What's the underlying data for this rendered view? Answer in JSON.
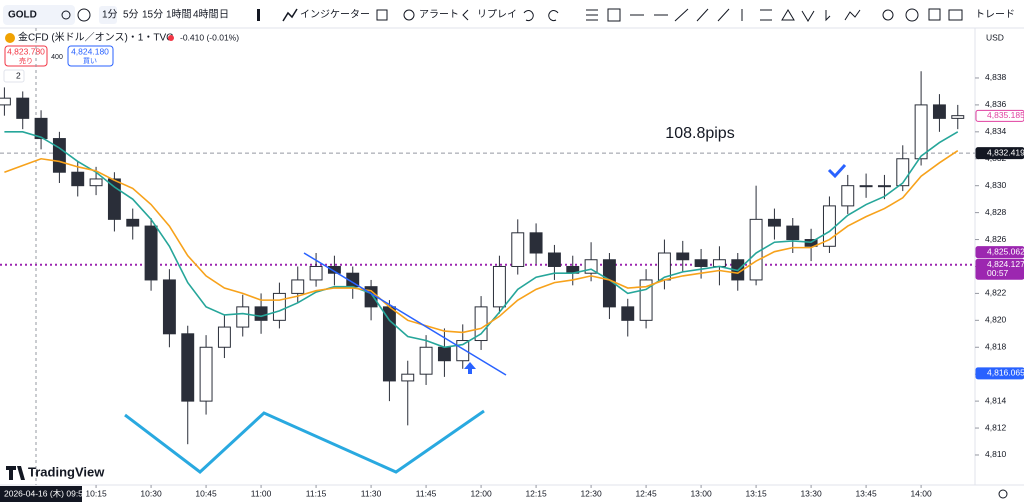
{
  "toolbar": {
    "symbol": "GOLD",
    "intervals": [
      "1分",
      "5分",
      "15分",
      "1時間",
      "4時間",
      "日"
    ],
    "indicators": "インジケーター",
    "alert": "アラート",
    "replay": "リプレイ",
    "trade": "トレード"
  },
  "header": {
    "instrument": "金CFD (米ドル／オンス)・1・TVC",
    "change": "-0.410 (-0.01%)",
    "sell_price": "4,823.780",
    "sell_label": "売り",
    "spread": "400",
    "buy_price": "4,824.180",
    "buy_label": "買い",
    "panes": "2"
  },
  "chart_data": {
    "type": "candlestick",
    "currency": "USD",
    "annotation": "108.8pips",
    "date_label": "2026-04-16 (木) 09:59",
    "brand": "TradingView",
    "xlim": [
      588.8,
      854.7
    ],
    "ylim": [
      4807.77,
      4841.86
    ],
    "xticks": [
      {
        "value": 615,
        "label": "10:15"
      },
      {
        "value": 630,
        "label": "10:30"
      },
      {
        "value": 645,
        "label": "10:45"
      },
      {
        "value": 660,
        "label": "11:00"
      },
      {
        "value": 675,
        "label": "11:15"
      },
      {
        "value": 690,
        "label": "11:30"
      },
      {
        "value": 705,
        "label": "11:45"
      },
      {
        "value": 720,
        "label": "12:00"
      },
      {
        "value": 735,
        "label": "12:15"
      },
      {
        "value": 750,
        "label": "12:30"
      },
      {
        "value": 765,
        "label": "12:45"
      },
      {
        "value": 780,
        "label": "13:00"
      },
      {
        "value": 795,
        "label": "13:15"
      },
      {
        "value": 810,
        "label": "13:30"
      },
      {
        "value": 825,
        "label": "13:45"
      },
      {
        "value": 840,
        "label": "14:00"
      }
    ],
    "yticks": [
      {
        "value": 4810,
        "label": "4,810"
      },
      {
        "value": 4812,
        "label": "4,812"
      },
      {
        "value": 4814,
        "label": "4,814"
      },
      {
        "value": 4816,
        "label": "4,816"
      },
      {
        "value": 4818,
        "label": "4,818"
      },
      {
        "value": 4820,
        "label": "4,820"
      },
      {
        "value": 4822,
        "label": "4,822"
      },
      {
        "value": 4824,
        "label": "4,824"
      },
      {
        "value": 4826,
        "label": "4,826"
      },
      {
        "value": 4828,
        "label": "4,828"
      },
      {
        "value": 4830,
        "label": "4,830"
      },
      {
        "value": 4832,
        "label": "4,832"
      },
      {
        "value": 4834,
        "label": "4,834"
      },
      {
        "value": 4836,
        "label": "4,836"
      },
      {
        "value": 4838,
        "label": "4,838"
      }
    ],
    "x": [
      590,
      595,
      600,
      605,
      610,
      615,
      620,
      625,
      630,
      635,
      640,
      645,
      650,
      655,
      660,
      665,
      670,
      675,
      680,
      685,
      690,
      695,
      700,
      705,
      710,
      715,
      720,
      725,
      730,
      735,
      740,
      745,
      750,
      755,
      760,
      765,
      770,
      775,
      780,
      785,
      790,
      795,
      800,
      805,
      810,
      815,
      820,
      825,
      830,
      835,
      840,
      845,
      850
    ],
    "open": [
      4836,
      4836.5,
      4835,
      4833.5,
      4831,
      4830,
      4830.5,
      4827.5,
      4827,
      4823,
      4819,
      4814,
      4818,
      4819.5,
      4821,
      4820,
      4822,
      4823,
      4824,
      4823.5,
      4822.5,
      4821,
      4815.5,
      4816,
      4818,
      4817,
      4818.5,
      4821,
      4824,
      4826.5,
      4825,
      4824,
      4823.5,
      4824.5,
      4821,
      4820,
      4823,
      4825,
      4824.5,
      4824,
      4824.5,
      4823,
      4827.5,
      4827,
      4826,
      4825.5,
      4828.5,
      4830,
      4830,
      4830,
      4832,
      4836,
      4835
    ],
    "high": [
      4837.3,
      4837,
      4835.6,
      4834,
      4831.8,
      4831.4,
      4831,
      4828.3,
      4827.6,
      4823.8,
      4819.6,
      4818.9,
      4820.4,
      4821.9,
      4822,
      4822.8,
      4824,
      4825,
      4824.8,
      4824,
      4823,
      4821.5,
      4817,
      4818.9,
      4819.4,
      4819.7,
      4821.8,
      4824.8,
      4827.5,
      4827.2,
      4825.6,
      4824.8,
      4825.8,
      4825,
      4821.6,
      4823.8,
      4826,
      4825.9,
      4825.3,
      4825.5,
      4825,
      4830,
      4828.3,
      4827.6,
      4826.8,
      4829.2,
      4830.8,
      4830.9,
      4830.8,
      4833,
      4838.5,
      4836.8,
      4836
    ],
    "low": [
      4835.2,
      4834.2,
      4832.7,
      4830.2,
      4829.2,
      4829.3,
      4826.6,
      4826,
      4822.2,
      4818,
      4810.8,
      4813,
      4817.2,
      4818.8,
      4819,
      4819.4,
      4821.3,
      4822.5,
      4822.6,
      4821.6,
      4820,
      4814,
      4812.2,
      4815.2,
      4815.8,
      4816.4,
      4817.8,
      4820.5,
      4823.4,
      4824.2,
      4823,
      4822.6,
      4822.9,
      4820.1,
      4818.8,
      4819.4,
      4822.3,
      4823.6,
      4823.1,
      4822.6,
      4822.2,
      4822.6,
      4826,
      4825,
      4824.4,
      4825,
      4827.9,
      4829.1,
      4829,
      4829.6,
      4831.5,
      4834,
      4834.2
    ],
    "close": [
      4836.5,
      4835,
      4833.5,
      4831,
      4830,
      4830.5,
      4827.5,
      4827,
      4823,
      4819,
      4814,
      4818,
      4819.5,
      4821,
      4820,
      4822,
      4823,
      4824,
      4823.5,
      4822.5,
      4821,
      4815.5,
      4816,
      4818,
      4817,
      4818.5,
      4821,
      4824,
      4826.5,
      4825,
      4824,
      4823.5,
      4824.5,
      4821,
      4820,
      4823,
      4825,
      4824.5,
      4824,
      4824.5,
      4823,
      4827.5,
      4827,
      4826,
      4825.5,
      4828.5,
      4830,
      4830,
      4830,
      4832,
      4836,
      4835,
      4835.2
    ],
    "up_color": "#ffffff",
    "down_color": "#2a2e39",
    "wick_color": "#2a2e39",
    "ma_lines": [
      {
        "color": "#26a69a",
        "values": [
          4834,
          4834,
          4833.6,
          4832.8,
          4831.8,
          4831,
          4829.9,
          4829,
          4827.5,
          4825.5,
          4822.8,
          4821,
          4820.4,
          4820.5,
          4820.3,
          4820.7,
          4821.3,
          4822.1,
          4822.5,
          4822.5,
          4822,
          4820,
          4818.8,
          4818.5,
          4818,
          4818.2,
          4819,
          4820.6,
          4822.3,
          4823.2,
          4823.5,
          4823.5,
          4823.8,
          4823,
          4822,
          4822.3,
          4823.2,
          4823.6,
          4823.8,
          4824,
          4823.7,
          4825,
          4825.8,
          4825.9,
          4825.8,
          4826.6,
          4827.8,
          4828.6,
          4829.2,
          4830.2,
          4832.2,
          4833.2,
          4834
        ]
      },
      {
        "color": "#f7a21b",
        "values": [
          4831,
          4831.5,
          4832,
          4831.8,
          4831.4,
          4831.1,
          4830.4,
          4829.8,
          4828.6,
          4827,
          4824.8,
          4823.3,
          4822.4,
          4822,
          4821.5,
          4821.5,
          4821.8,
          4822.2,
          4822.4,
          4822.4,
          4822.2,
          4821,
          4820,
          4819.6,
          4819.2,
          4819.1,
          4819.4,
          4820.3,
          4821.5,
          4822.3,
          4822.8,
          4823,
          4823.3,
          4823,
          4822.4,
          4822.5,
          4823,
          4823.3,
          4823.5,
          4823.7,
          4823.5,
          4824.4,
          4825.1,
          4825.4,
          4825.4,
          4826,
          4827,
          4827.7,
          4828.3,
          4829.1,
          4830.7,
          4831.7,
          4832.6
        ]
      }
    ],
    "horizontal_lines": [
      {
        "value": 4832.419,
        "color": "#9598a1",
        "style": "dashed"
      },
      {
        "value": 4824.127,
        "color": "#9c27b0",
        "style": "dotted"
      }
    ],
    "price_tags": [
      {
        "value": 4835.185,
        "label": "4,835.185",
        "color": "#e040a0",
        "filled": false
      },
      {
        "value": 4832.419,
        "label": "4,832.419",
        "color": "#131722",
        "filled": true
      },
      {
        "value": 4825.062,
        "label": "4,825.062",
        "color": "#9c27b0",
        "filled": true
      },
      {
        "value": 4824.127,
        "label": "4,824.127",
        "color": "#9c27b0",
        "filled": true
      },
      {
        "value": 4816.065,
        "label": "4,816.065",
        "color": "#2962ff",
        "filled": true
      }
    ],
    "countdown": "00:57"
  }
}
